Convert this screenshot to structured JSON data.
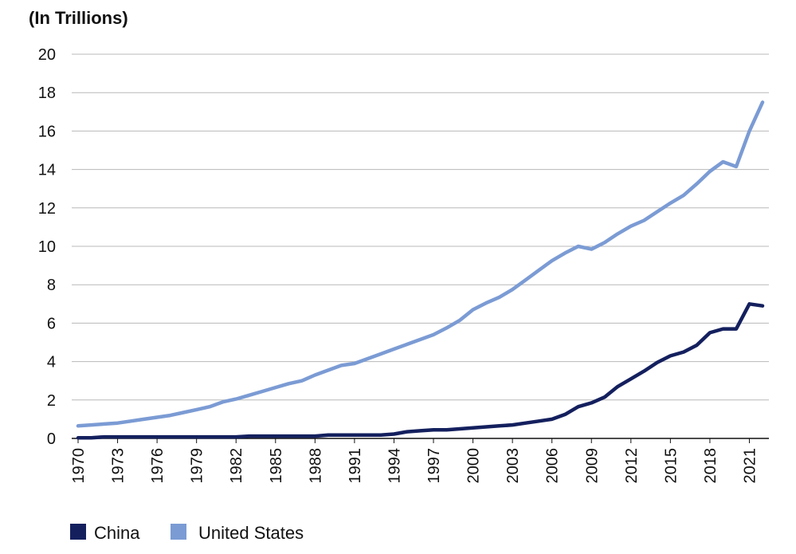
{
  "chart_data": {
    "type": "line",
    "ylabel": "(In Trillions)",
    "xlabel": "",
    "ylim": [
      0,
      20
    ],
    "yticks": [
      0,
      2,
      4,
      6,
      8,
      10,
      12,
      14,
      16,
      18,
      20
    ],
    "xlim": [
      1970,
      2022
    ],
    "xticks": [
      1970,
      1973,
      1976,
      1979,
      1982,
      1985,
      1988,
      1991,
      1994,
      1997,
      2000,
      2003,
      2006,
      2009,
      2012,
      2015,
      2018,
      2021
    ],
    "grid": true,
    "legend_position": "bottom-left",
    "x": [
      1970,
      1971,
      1972,
      1973,
      1974,
      1975,
      1976,
      1977,
      1978,
      1979,
      1980,
      1981,
      1982,
      1983,
      1984,
      1985,
      1986,
      1987,
      1988,
      1989,
      1990,
      1991,
      1992,
      1993,
      1994,
      1995,
      1996,
      1997,
      1998,
      1999,
      2000,
      2001,
      2002,
      2003,
      2004,
      2005,
      2006,
      2007,
      2008,
      2009,
      2010,
      2011,
      2012,
      2013,
      2014,
      2015,
      2016,
      2017,
      2018,
      2019,
      2020,
      2021,
      2022
    ],
    "series": [
      {
        "name": "China",
        "color": "#14205e",
        "values": [
          0.03,
          0.03,
          0.08,
          0.08,
          0.08,
          0.08,
          0.08,
          0.08,
          0.08,
          0.08,
          0.08,
          0.08,
          0.08,
          0.12,
          0.12,
          0.12,
          0.12,
          0.12,
          0.12,
          0.18,
          0.18,
          0.18,
          0.18,
          0.18,
          0.23,
          0.35,
          0.4,
          0.45,
          0.45,
          0.5,
          0.55,
          0.6,
          0.65,
          0.7,
          0.8,
          0.9,
          1.0,
          1.25,
          1.65,
          1.85,
          2.15,
          2.7,
          3.1,
          3.5,
          3.95,
          4.3,
          4.5,
          4.85,
          5.5,
          5.7,
          5.7,
          7.0,
          6.9
        ]
      },
      {
        "name": "United States",
        "color": "#7b9bd4",
        "values": [
          0.65,
          0.7,
          0.75,
          0.8,
          0.9,
          1.0,
          1.1,
          1.2,
          1.35,
          1.5,
          1.65,
          1.9,
          2.05,
          2.25,
          2.45,
          2.65,
          2.85,
          3.0,
          3.3,
          3.55,
          3.8,
          3.9,
          4.15,
          4.4,
          4.65,
          4.9,
          5.15,
          5.4,
          5.75,
          6.15,
          6.7,
          7.05,
          7.35,
          7.75,
          8.25,
          8.75,
          9.25,
          9.65,
          10.0,
          9.85,
          10.2,
          10.65,
          11.05,
          11.35,
          11.8,
          12.25,
          12.65,
          13.25,
          13.9,
          14.4,
          14.15,
          16.0,
          17.5
        ]
      }
    ]
  }
}
